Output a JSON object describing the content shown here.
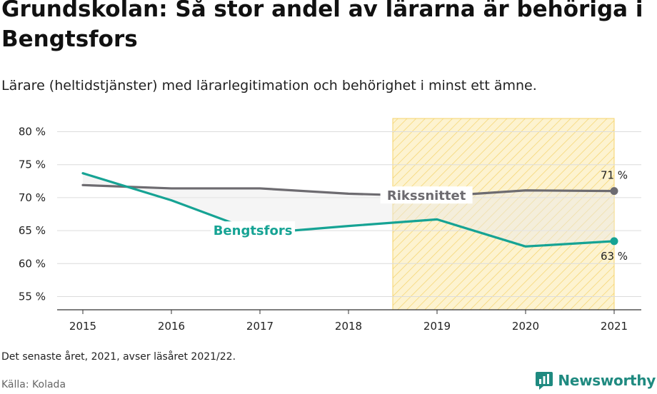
{
  "title": "Grundskolan: Så stor andel av lärarna är behöriga i Bengtsfors",
  "subtitle": "Lärare (heltidstjänster) med lärarlegitimation och behörighet i minst ett ämne.",
  "note": "Det senaste året, 2021, avser läsåret 2021/22.",
  "source": "Källa: Kolada",
  "brand": {
    "name": "Newsworthy",
    "logo_icon": "bar-chart-speech-bubble-icon"
  },
  "colors": {
    "bengtsfors": "#16a394",
    "rikssnittet": "#6d6b70",
    "highlight_fill": "#fdf3d0",
    "highlight_hatch": "#f5d36b",
    "brand": "#1f8a80"
  },
  "chart_data": {
    "type": "line",
    "x": [
      2015,
      2016,
      2017,
      2018,
      2019,
      2020,
      2021
    ],
    "y_ticks": [
      55,
      60,
      65,
      70,
      75,
      80
    ],
    "y_tick_labels": [
      "55 %",
      "60 %",
      "65 %",
      "70 %",
      "75 %",
      "80 %"
    ],
    "ylim": [
      53,
      82
    ],
    "grid": true,
    "highlight_range": [
      2018.5,
      2021
    ],
    "series": [
      {
        "key": "rikssnittet",
        "name": "Rikssnittet",
        "values": [
          71.9,
          71.4,
          71.4,
          70.6,
          70.2,
          71.1,
          71.0
        ],
        "end_label": "71 %"
      },
      {
        "key": "bengtsfors",
        "name": "Bengtsfors",
        "values": [
          73.7,
          69.6,
          64.6,
          65.7,
          66.7,
          62.6,
          63.4
        ],
        "end_label": "63 %"
      }
    ]
  }
}
